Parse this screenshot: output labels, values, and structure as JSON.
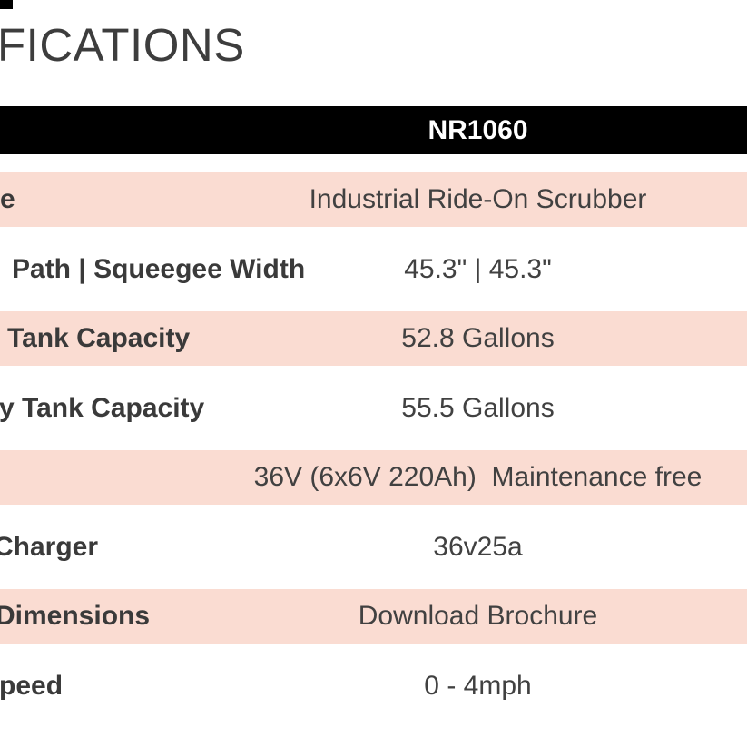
{
  "page": {
    "heading": "FICATIONS"
  },
  "colors": {
    "row_pink": "#fadcd2",
    "row_white": "#ffffff",
    "header_bg": "#000000",
    "header_text": "#ffffff",
    "body_text": "#414141"
  },
  "table": {
    "header": {
      "title": "NR1060"
    },
    "rows": [
      {
        "label": "e",
        "value": "Industrial Ride-On Scrubber",
        "link": false
      },
      {
        "label": "Path | Squeegee Width",
        "value": "45.3\" | 45.3\"",
        "link": false
      },
      {
        "label": "Tank Capacity",
        "value": "52.8 Gallons",
        "link": false
      },
      {
        "label": "y Tank Capacity",
        "value": "55.5 Gallons",
        "link": false
      },
      {
        "label": "",
        "value": "36V (6x6V 220Ah)  Maintenance free",
        "link": false
      },
      {
        "label": "Charger",
        "value": "36v25a",
        "link": false
      },
      {
        "label": "Dimensions",
        "value": "Download Brochure",
        "link": true
      },
      {
        "label": "peed",
        "value": "0 - 4mph",
        "link": false
      }
    ]
  }
}
